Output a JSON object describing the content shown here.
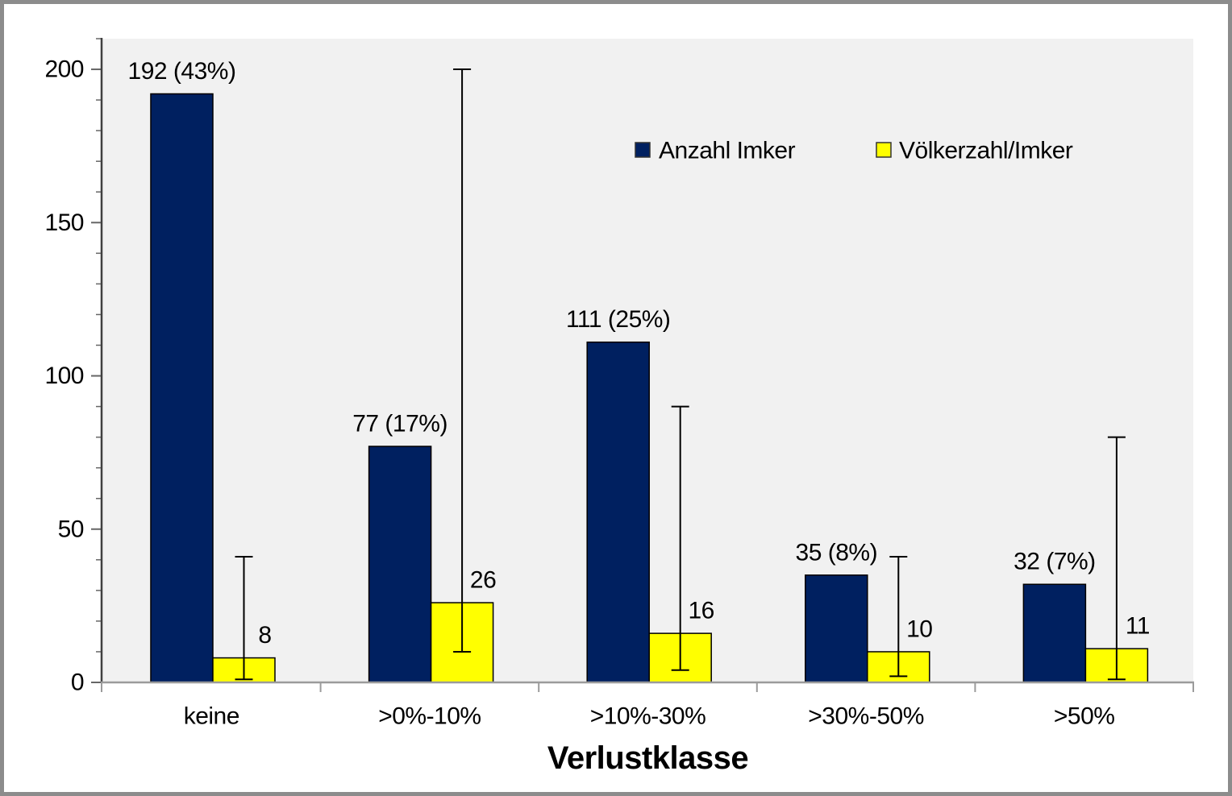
{
  "chart_data": {
    "type": "bar",
    "title": "",
    "categories": [
      "keine",
      ">0%-10%",
      ">10%-30%",
      ">30%-50%",
      ">50%"
    ],
    "series": [
      {
        "name": "Anzahl Imker",
        "color": "#002060",
        "values": [
          192,
          77,
          111,
          35,
          32
        ],
        "data_labels": [
          "192 (43%)",
          "77 (17%)",
          "111 (25%)",
          "35 (8%)",
          "32 (7%)"
        ]
      },
      {
        "name": "Völkerzahl/Imker",
        "color": "#ffff00",
        "values": [
          8,
          26,
          16,
          10,
          11
        ],
        "data_labels": [
          "8",
          "26",
          "16",
          "10",
          "11"
        ],
        "error_bars": {
          "low": [
            1,
            10,
            4,
            2,
            1
          ],
          "high": [
            41,
            200,
            90,
            41,
            80
          ]
        }
      }
    ],
    "xlabel": "Verlustklasse",
    "ylabel": "",
    "yticks": [
      0,
      50,
      100,
      150,
      200
    ],
    "ytick_labels": [
      "0",
      "50",
      "100",
      "150",
      "200"
    ],
    "yminor_step": 10,
    "ylim": [
      0,
      210
    ],
    "grid": false,
    "legend_position": "inside-top-right"
  },
  "colors": {
    "plot_bg": "#f1f1f1",
    "page_bg": "#ffffff",
    "frame_border": "#8c8c8c",
    "y_axis_line": "#404040",
    "x_axis_line": "#9b9b9b",
    "tick": "#666666",
    "bar_outline": "#000000",
    "error_bar": "#000000",
    "text": "#000000"
  }
}
